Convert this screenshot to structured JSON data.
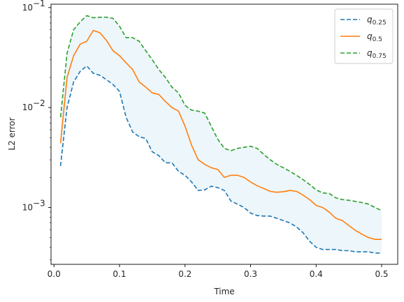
{
  "chart_data": {
    "type": "line",
    "title": "",
    "xlabel": "Time",
    "ylabel": "L2 error",
    "yscale": "log",
    "xlim": [
      -0.0045,
      0.5245
    ],
    "ylim": [
      0.00027,
      0.108
    ],
    "xticks": [
      0.0,
      0.1,
      0.2,
      0.3,
      0.4,
      0.5
    ],
    "xtick_labels": [
      "0.0",
      "0.1",
      "0.2",
      "0.3",
      "0.4",
      "0.5"
    ],
    "yticks": [
      0.001,
      0.01,
      0.1
    ],
    "ytick_labels": [
      "10",
      "10",
      "10"
    ],
    "ytick_exponents": [
      "−3",
      "−2",
      "−1"
    ],
    "grid": false,
    "legend_position": "top-right",
    "band": {
      "color": "#add8e6",
      "opacity": 0.22,
      "between": [
        "q0.25",
        "q0.75"
      ]
    },
    "x": [
      0.01,
      0.02,
      0.03,
      0.04,
      0.05,
      0.06,
      0.07,
      0.08,
      0.09,
      0.1,
      0.11,
      0.12,
      0.13,
      0.14,
      0.15,
      0.16,
      0.17,
      0.18,
      0.19,
      0.2,
      0.21,
      0.22,
      0.23,
      0.24,
      0.25,
      0.26,
      0.27,
      0.28,
      0.29,
      0.3,
      0.31,
      0.32,
      0.33,
      0.34,
      0.35,
      0.36,
      0.37,
      0.38,
      0.39,
      0.4,
      0.41,
      0.42,
      0.43,
      0.44,
      0.45,
      0.46,
      0.47,
      0.48,
      0.49,
      0.5
    ],
    "series": [
      {
        "key": "q0.25",
        "label_main": "q",
        "label_sub": "0.25",
        "color": "#1f77b4",
        "dash": "6,3",
        "values": [
          0.0026,
          0.01,
          0.018,
          0.023,
          0.026,
          0.022,
          0.021,
          0.019,
          0.017,
          0.0145,
          0.008,
          0.0057,
          0.0051,
          0.0049,
          0.0036,
          0.0033,
          0.0028,
          0.0028,
          0.0023,
          0.0021,
          0.0018,
          0.00148,
          0.0015,
          0.00163,
          0.00158,
          0.00148,
          0.00116,
          0.00108,
          0.001,
          0.00088,
          0.00083,
          0.00082,
          0.00082,
          0.00078,
          0.00074,
          0.0007,
          0.00064,
          0.00056,
          0.00046,
          0.0004,
          0.00038,
          0.00038,
          0.00038,
          0.00037,
          0.00037,
          0.00036,
          0.00036,
          0.00036,
          0.00035,
          0.00035
        ]
      },
      {
        "key": "q0.5",
        "label_main": "q",
        "label_sub": "0.5",
        "color": "#ff7f0e",
        "dash": "",
        "values": [
          0.0044,
          0.02,
          0.033,
          0.043,
          0.046,
          0.059,
          0.056,
          0.047,
          0.037,
          0.033,
          0.028,
          0.024,
          0.018,
          0.016,
          0.014,
          0.0135,
          0.0115,
          0.01,
          0.0092,
          0.0065,
          0.0042,
          0.003,
          0.0027,
          0.0025,
          0.0024,
          0.002,
          0.0021,
          0.0021,
          0.002,
          0.0018,
          0.00165,
          0.00155,
          0.00145,
          0.00142,
          0.00144,
          0.00148,
          0.00145,
          0.00133,
          0.0012,
          0.00105,
          0.001,
          0.0009,
          0.00078,
          0.00074,
          0.00066,
          0.00059,
          0.00054,
          0.0005,
          0.00048,
          0.00048
        ]
      },
      {
        "key": "q0.75",
        "label_main": "q",
        "label_sub": "0.75",
        "color": "#2ca02c",
        "dash": "6,3",
        "values": [
          0.008,
          0.035,
          0.06,
          0.072,
          0.083,
          0.079,
          0.08,
          0.08,
          0.078,
          0.065,
          0.05,
          0.05,
          0.046,
          0.037,
          0.03,
          0.024,
          0.02,
          0.016,
          0.014,
          0.0105,
          0.0094,
          0.0092,
          0.0088,
          0.0065,
          0.0048,
          0.0039,
          0.0037,
          0.0039,
          0.004,
          0.0041,
          0.0039,
          0.0034,
          0.003,
          0.0027,
          0.0025,
          0.0023,
          0.0021,
          0.0019,
          0.0017,
          0.0015,
          0.0014,
          0.00138,
          0.00125,
          0.0012,
          0.00118,
          0.00115,
          0.00112,
          0.00108,
          0.001,
          0.00093
        ]
      }
    ]
  }
}
